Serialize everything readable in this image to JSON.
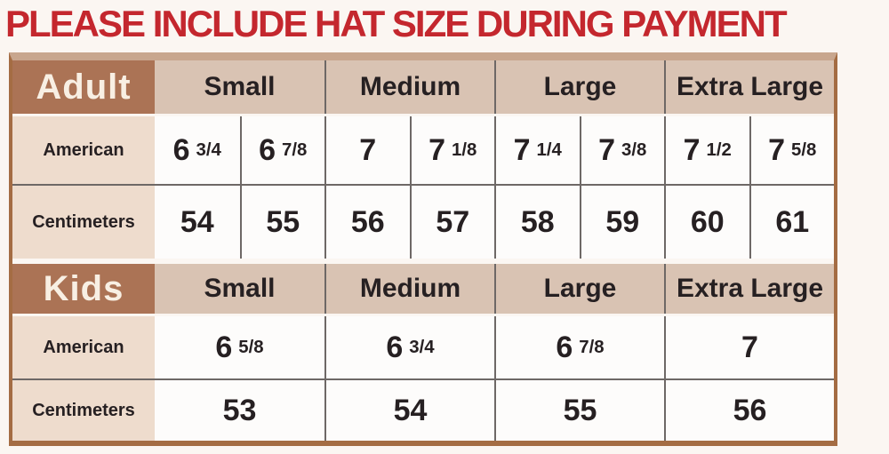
{
  "page": {
    "title": "PLEASE INCLUDE HAT SIZE DURING PAYMENT"
  },
  "colors": {
    "title_red": "#c4272e",
    "section_header_bg": "#ab7355",
    "section_header_text": "#f8efe3",
    "size_header_bg": "#d9c3b3",
    "row_label_bg": "#eedccd",
    "value_cell_bg": "#fdfcfb",
    "dark_text": "#262022",
    "outer_border": "#a46c43",
    "table_top_strip": "#c8a68e",
    "grid_line": "#6e6866",
    "page_bg": "#fbf6f2"
  },
  "chart_data": {
    "type": "table",
    "title": "PLEASE INCLUDE HAT SIZE DURING PAYMENT",
    "sections": [
      {
        "group": "Adult",
        "size_headers": [
          "Small",
          "Medium",
          "Large",
          "Extra Large"
        ],
        "rows": [
          {
            "label": "American",
            "values": [
              "6 3/4",
              "6 7/8",
              "7",
              "7 1/8",
              "7 1/4",
              "7 3/8",
              "7 1/2",
              "7 5/8"
            ]
          },
          {
            "label": "Centimeters",
            "values": [
              "54",
              "55",
              "56",
              "57",
              "58",
              "59",
              "60",
              "61"
            ]
          }
        ]
      },
      {
        "group": "Kids",
        "size_headers": [
          "Small",
          "Medium",
          "Large",
          "Extra Large"
        ],
        "rows": [
          {
            "label": "American",
            "values": [
              "6 5/8",
              "6 3/4",
              "6 7/8",
              "7"
            ]
          },
          {
            "label": "Centimeters",
            "values": [
              "53",
              "54",
              "55",
              "56"
            ]
          }
        ]
      }
    ]
  }
}
